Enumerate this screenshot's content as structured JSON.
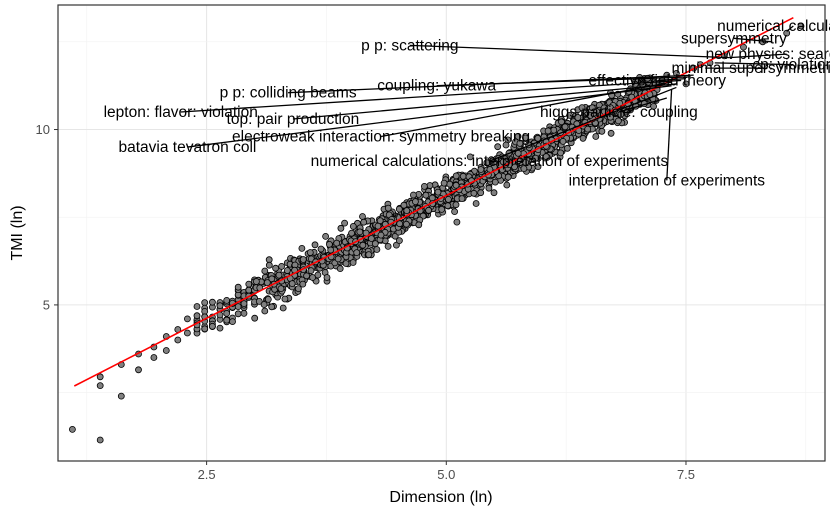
{
  "chart_data": {
    "type": "scatter",
    "title": "",
    "xlabel": "Dimension (ln)",
    "ylabel": "TMI (ln)",
    "xlim": [
      0.95,
      8.95
    ],
    "ylim": [
      0.55,
      13.55
    ],
    "x_ticks": [
      2.5,
      5.0,
      7.5
    ],
    "x_tick_labels": [
      "2.5",
      "5.0",
      "7.5"
    ],
    "y_ticks": [
      5,
      10
    ],
    "y_tick_labels": [
      "5",
      "10"
    ],
    "grid": true,
    "legend": "none",
    "fit_line": {
      "intercept": 1.12,
      "slope": 1.4,
      "x_start": 1.12,
      "x_end": 8.62,
      "color": "#ff0000"
    },
    "points_color": "#808080",
    "points_edge": "#000000",
    "outlier_points": [
      {
        "x": 1.1,
        "y": 1.45
      },
      {
        "x": 1.39,
        "y": 1.15
      },
      {
        "x": 1.39,
        "y": 2.7
      },
      {
        "x": 1.39,
        "y": 2.95
      },
      {
        "x": 1.61,
        "y": 3.3
      },
      {
        "x": 1.61,
        "y": 2.4
      },
      {
        "x": 1.79,
        "y": 3.15
      },
      {
        "x": 1.79,
        "y": 3.6
      },
      {
        "x": 1.95,
        "y": 3.8
      },
      {
        "x": 1.95,
        "y": 3.5
      },
      {
        "x": 2.08,
        "y": 3.7
      },
      {
        "x": 2.08,
        "y": 4.1
      },
      {
        "x": 2.2,
        "y": 4.0
      },
      {
        "x": 2.2,
        "y": 4.3
      },
      {
        "x": 2.3,
        "y": 4.6
      },
      {
        "x": 2.3,
        "y": 4.2
      }
    ],
    "top_points": [
      {
        "x": 7.25,
        "y": 11.4
      },
      {
        "x": 7.3,
        "y": 11.55
      },
      {
        "x": 7.4,
        "y": 11.6
      },
      {
        "x": 7.5,
        "y": 11.3
      },
      {
        "x": 7.58,
        "y": 11.75
      },
      {
        "x": 7.65,
        "y": 11.85
      },
      {
        "x": 7.75,
        "y": 11.9
      },
      {
        "x": 7.9,
        "y": 12.1
      },
      {
        "x": 8.1,
        "y": 12.35
      },
      {
        "x": 8.3,
        "y": 12.5
      },
      {
        "x": 8.55,
        "y": 12.75
      },
      {
        "x": 8.7,
        "y": 12.95
      }
    ],
    "annotations": [
      {
        "text": "numerical calculations",
        "x": 8.62,
        "y": 12.95,
        "px": 8.55,
        "py": 12.8
      },
      {
        "text": "supersymmetry",
        "x": 8.0,
        "y": 12.6,
        "px": 8.4,
        "py": 12.5
      },
      {
        "text": "p p: scattering",
        "x": 4.62,
        "y": 12.4,
        "px": 7.95,
        "py": 12.05
      },
      {
        "text": "new physics: search for",
        "x": 8.55,
        "y": 12.15,
        "px": 7.95,
        "py": 12.05
      },
      {
        "text": "cp: violation",
        "x": 8.62,
        "y": 11.85,
        "px": 7.8,
        "py": 11.9
      },
      {
        "text": "minimal supersymmetric sta",
        "x": 8.35,
        "y": 11.75,
        "px": 7.7,
        "py": 11.75
      },
      {
        "text": "p p: colliding beams",
        "x": 3.35,
        "y": 11.05,
        "px": 7.58,
        "py": 11.55
      },
      {
        "text": "coupling: yukawa",
        "x": 4.9,
        "y": 11.25,
        "px": 7.55,
        "py": 11.5
      },
      {
        "text": "effective field theory",
        "x": 7.2,
        "y": 11.4,
        "px": 7.5,
        "py": 11.45
      },
      {
        "text": "lepton: flavor: violation",
        "x": 2.23,
        "y": 10.5,
        "px": 7.45,
        "py": 11.4
      },
      {
        "text": "top: pair production",
        "x": 3.4,
        "y": 10.3,
        "px": 7.4,
        "py": 11.3
      },
      {
        "text": "higgs particle: coupling",
        "x": 6.8,
        "y": 10.5,
        "px": 7.3,
        "py": 10.9
      },
      {
        "text": "electroweak interaction: symmetry breaking",
        "x": 4.32,
        "y": 9.8,
        "px": 7.35,
        "py": 11.35
      },
      {
        "text": "batavia tevatron coll",
        "x": 2.3,
        "y": 9.5,
        "px": 7.35,
        "py": 11.25
      },
      {
        "text": "numerical calculations: interpretation of experiments",
        "x": 5.45,
        "y": 9.1,
        "px": 7.4,
        "py": 11.2
      },
      {
        "text": "interpretation of experiments",
        "x": 7.3,
        "y": 8.55,
        "px": 7.35,
        "py": 11.15
      }
    ]
  }
}
